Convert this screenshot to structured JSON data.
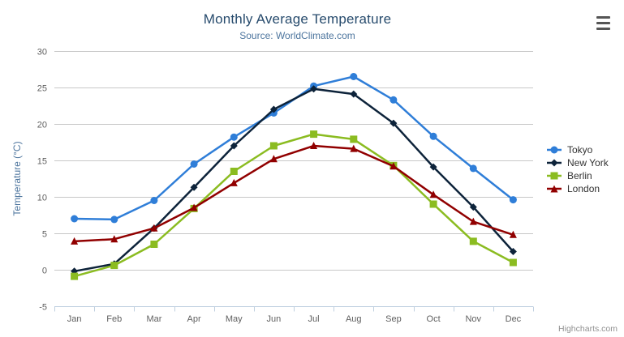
{
  "chart": {
    "title": "Monthly Average Temperature",
    "subtitle": "Source: WorldClimate.com",
    "credits": "Highcharts.com",
    "export_menu_icon": "hamburger-icon"
  },
  "chart_data": {
    "type": "line",
    "title": "Monthly Average Temperature",
    "subtitle": "Source: WorldClimate.com",
    "categories": [
      "Jan",
      "Feb",
      "Mar",
      "Apr",
      "May",
      "Jun",
      "Jul",
      "Aug",
      "Sep",
      "Oct",
      "Nov",
      "Dec"
    ],
    "xlabel": "",
    "ylabel": "Temperature (°C)",
    "ylim": [
      -5,
      30
    ],
    "tick_interval": 5,
    "grid": true,
    "legend_position": "right",
    "colors": {
      "title_text": "#274b6d",
      "subtitle_text": "#4d759e",
      "axis_label_text": "#606060",
      "axis_title_text": "#4d759e",
      "gridline": "#c8c8c8",
      "axis_line": "#c0d0e0",
      "legend_text": "#333333",
      "credits_text": "#909090"
    },
    "series": [
      {
        "name": "Tokyo",
        "color": "#2f7ed8",
        "marker": "circle",
        "values": [
          7.0,
          6.9,
          9.5,
          14.5,
          18.2,
          21.5,
          25.2,
          26.5,
          23.3,
          18.3,
          13.9,
          9.6
        ]
      },
      {
        "name": "New York",
        "color": "#0d233a",
        "marker": "diamond",
        "values": [
          -0.2,
          0.8,
          5.7,
          11.3,
          17.0,
          22.0,
          24.8,
          24.1,
          20.1,
          14.1,
          8.6,
          2.5
        ]
      },
      {
        "name": "Berlin",
        "color": "#8bbc21",
        "marker": "square",
        "values": [
          -0.9,
          0.6,
          3.5,
          8.4,
          13.5,
          17.0,
          18.6,
          17.9,
          14.3,
          9.0,
          3.9,
          1.0
        ]
      },
      {
        "name": "London",
        "color": "#910000",
        "marker": "triangle",
        "values": [
          3.9,
          4.2,
          5.7,
          8.5,
          11.9,
          15.2,
          17.0,
          16.6,
          14.2,
          10.3,
          6.6,
          4.8
        ]
      }
    ]
  }
}
